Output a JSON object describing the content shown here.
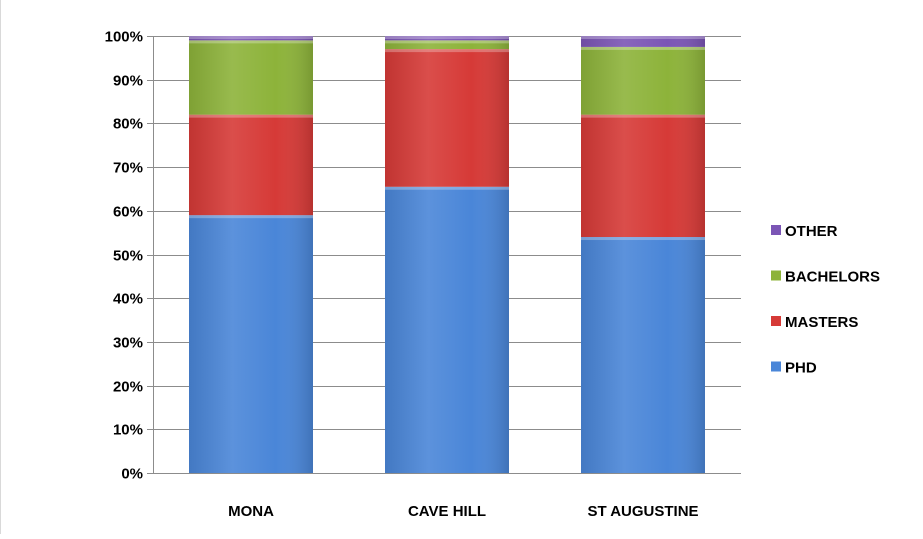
{
  "chart_data": {
    "type": "bar",
    "stacked": "percent",
    "categories": [
      "MONA",
      "CAVE HILL",
      "ST AUGUSTINE"
    ],
    "series": [
      {
        "name": "PHD",
        "values": [
          59,
          65.5,
          54
        ],
        "color": "#4a86d8"
      },
      {
        "name": "MASTERS",
        "values": [
          23,
          31.5,
          28
        ],
        "color": "#d63a37"
      },
      {
        "name": "BACHELORS",
        "values": [
          17,
          2,
          15.5
        ],
        "color": "#8db33a"
      },
      {
        "name": "OTHER",
        "values": [
          1,
          1,
          2.5
        ],
        "color": "#7b55b5"
      }
    ],
    "ylim": [
      0,
      100
    ],
    "yticks": [
      "0%",
      "10%",
      "20%",
      "30%",
      "40%",
      "50%",
      "60%",
      "70%",
      "80%",
      "90%",
      "100%"
    ],
    "grid": true,
    "legend": "right"
  }
}
